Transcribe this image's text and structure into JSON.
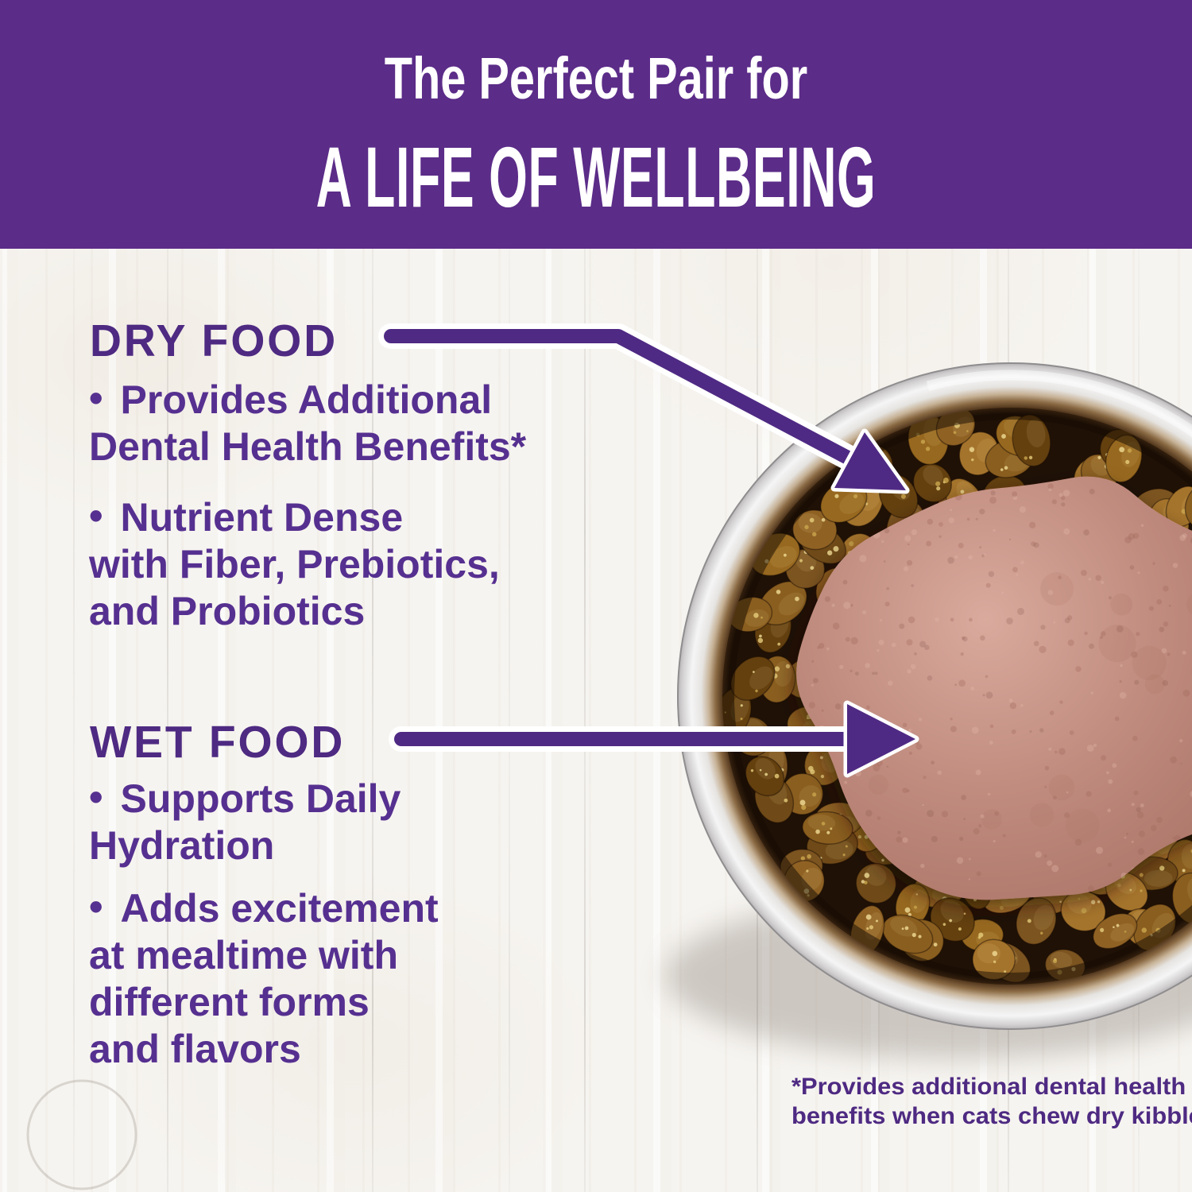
{
  "banner": {
    "line1": "The Perfect Pair for",
    "line2": "A LIFE OF WELLBEING"
  },
  "glyphs": {
    "bullet": "•"
  },
  "sections": [
    {
      "heading": "DRY FOOD",
      "bullets": [
        "Provides Additional\nDental Health Benefits*",
        "Nutrient Dense\nwith Fiber, Prebiotics,\nand Probiotics"
      ]
    },
    {
      "heading": "WET FOOD",
      "bullets": [
        "Supports Daily\nHydration",
        "Adds excitement\nat mealtime with\ndifferent forms\nand flavors"
      ]
    }
  ],
  "footnote": "*Provides additional dental health\nbenefits when cats chew dry kibble",
  "colors": {
    "banner_bg": "#5b2c88",
    "banner_fg": "#ffffff",
    "heading_purple": "#4e2a82",
    "body_purple": "#563090",
    "arrow_purple": "#4f2a84",
    "arrow_outline": "#ffffff",
    "floor": "#f6f4f0",
    "bowl_metal_light": "#f4f4f5",
    "bowl_metal_dark": "#b9b7b8",
    "bowl_interior": "#1f1106",
    "kibble": [
      "#7c5420",
      "#8a5e1f",
      "#97681f",
      "#6f4a18",
      "#8f6224",
      "#64400f",
      "#a5742c"
    ],
    "kibble_speckle": [
      "#e6cd7c",
      "#f0dc96",
      "#caa64e"
    ],
    "wet_highlight": "#d9aa9d",
    "wet_mid": "#c18d80",
    "wet_shadow": "#a87465",
    "wet_speckles": [
      "#9a6257",
      "#e3b7a8",
      "#7e4c44"
    ]
  }
}
